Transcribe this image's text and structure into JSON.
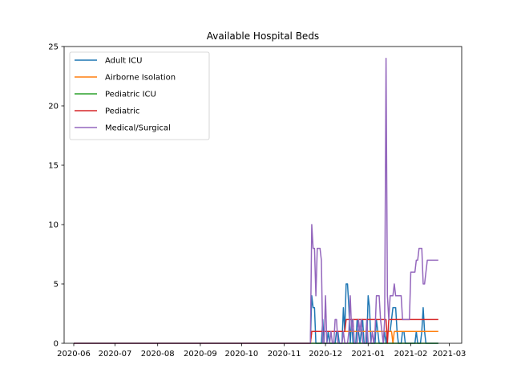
{
  "chart_data": {
    "type": "line",
    "title": "Available Hospital Beds",
    "xlabel": "",
    "ylabel": "",
    "x_axis": {
      "type": "date",
      "range": [
        "2020-05-25",
        "2021-03-10"
      ],
      "ticks": [
        "2020-06-01",
        "2020-07-01",
        "2020-08-01",
        "2020-09-01",
        "2020-10-01",
        "2020-11-01",
        "2020-12-01",
        "2021-01-01",
        "2021-02-01",
        "2021-03-01"
      ],
      "tick_labels": [
        "2020-06",
        "2020-07",
        "2020-08",
        "2020-09",
        "2020-10",
        "2020-11",
        "2020-12",
        "2021-01",
        "2021-02",
        "2021-03"
      ]
    },
    "ylim": [
      0,
      25
    ],
    "yticks": [
      0,
      5,
      10,
      15,
      20,
      25
    ],
    "grid": false,
    "legend": "top-left",
    "series": [
      {
        "name": "Adult ICU",
        "color": "#1f77b4",
        "points": [
          [
            "2020-06-01",
            0
          ],
          [
            "2020-11-20",
            0
          ],
          [
            "2020-11-21",
            4
          ],
          [
            "2020-11-22",
            3
          ],
          [
            "2020-11-23",
            3
          ],
          [
            "2020-11-24",
            0
          ],
          [
            "2020-11-28",
            0
          ],
          [
            "2020-11-29",
            2
          ],
          [
            "2020-11-30",
            0
          ],
          [
            "2020-12-02",
            0
          ],
          [
            "2020-12-03",
            1
          ],
          [
            "2020-12-04",
            0
          ],
          [
            "2020-12-08",
            0
          ],
          [
            "2020-12-09",
            1
          ],
          [
            "2020-12-10",
            1
          ],
          [
            "2020-12-11",
            0
          ],
          [
            "2020-12-13",
            0
          ],
          [
            "2020-12-14",
            3
          ],
          [
            "2020-12-15",
            1
          ],
          [
            "2020-12-16",
            5
          ],
          [
            "2020-12-17",
            5
          ],
          [
            "2020-12-18",
            3
          ],
          [
            "2020-12-19",
            0
          ],
          [
            "2020-12-20",
            2
          ],
          [
            "2020-12-21",
            0
          ],
          [
            "2020-12-23",
            0
          ],
          [
            "2020-12-24",
            2
          ],
          [
            "2020-12-25",
            1
          ],
          [
            "2020-12-26",
            0
          ],
          [
            "2020-12-28",
            2
          ],
          [
            "2020-12-29",
            0
          ],
          [
            "2020-12-31",
            0
          ],
          [
            "2021-01-01",
            4
          ],
          [
            "2021-01-02",
            3
          ],
          [
            "2021-01-03",
            0
          ],
          [
            "2021-01-06",
            0
          ],
          [
            "2021-01-07",
            2
          ],
          [
            "2021-01-08",
            1
          ],
          [
            "2021-01-09",
            0
          ],
          [
            "2021-01-12",
            0
          ],
          [
            "2021-01-13",
            1
          ],
          [
            "2021-01-14",
            0
          ],
          [
            "2021-01-15",
            1
          ],
          [
            "2021-01-17",
            1
          ],
          [
            "2021-01-18",
            2
          ],
          [
            "2021-01-19",
            3
          ],
          [
            "2021-01-20",
            3
          ],
          [
            "2021-01-21",
            3
          ],
          [
            "2021-01-22",
            1
          ],
          [
            "2021-01-23",
            0
          ],
          [
            "2021-01-25",
            0
          ],
          [
            "2021-01-26",
            1
          ],
          [
            "2021-01-27",
            1
          ],
          [
            "2021-01-28",
            0
          ],
          [
            "2021-02-04",
            0
          ],
          [
            "2021-02-05",
            1
          ],
          [
            "2021-02-06",
            0
          ],
          [
            "2021-02-08",
            0
          ],
          [
            "2021-02-09",
            1
          ],
          [
            "2021-02-10",
            3
          ],
          [
            "2021-02-11",
            1
          ],
          [
            "2021-02-12",
            0
          ],
          [
            "2021-02-21",
            0
          ]
        ]
      },
      {
        "name": "Airborne Isolation",
        "color": "#ff7f0e",
        "points": [
          [
            "2020-06-01",
            0
          ],
          [
            "2020-11-20",
            0
          ],
          [
            "2020-11-21",
            1
          ],
          [
            "2021-01-18",
            1
          ],
          [
            "2021-01-19",
            0
          ],
          [
            "2021-01-20",
            1
          ],
          [
            "2021-02-21",
            1
          ]
        ]
      },
      {
        "name": "Pediatric ICU",
        "color": "#2ca02c",
        "points": [
          [
            "2020-06-01",
            0
          ],
          [
            "2021-02-21",
            0
          ]
        ]
      },
      {
        "name": "Pediatric",
        "color": "#d62728",
        "points": [
          [
            "2020-06-01",
            0
          ],
          [
            "2020-11-20",
            0
          ],
          [
            "2020-11-21",
            1
          ],
          [
            "2020-12-15",
            1
          ],
          [
            "2020-12-16",
            2
          ],
          [
            "2021-01-14",
            2
          ],
          [
            "2021-01-15",
            0
          ],
          [
            "2021-01-16",
            2
          ],
          [
            "2021-02-21",
            2
          ]
        ]
      },
      {
        "name": "Medical/Surgical",
        "color": "#9467bd",
        "points": [
          [
            "2020-06-01",
            0
          ],
          [
            "2020-11-20",
            0
          ],
          [
            "2020-11-21",
            10
          ],
          [
            "2020-11-22",
            8
          ],
          [
            "2020-11-23",
            8
          ],
          [
            "2020-11-24",
            4
          ],
          [
            "2020-11-25",
            8
          ],
          [
            "2020-11-26",
            8
          ],
          [
            "2020-11-27",
            8
          ],
          [
            "2020-11-28",
            7
          ],
          [
            "2020-11-29",
            0
          ],
          [
            "2020-11-30",
            0
          ],
          [
            "2020-12-01",
            4
          ],
          [
            "2020-12-02",
            0
          ],
          [
            "2020-12-04",
            0
          ],
          [
            "2020-12-05",
            1
          ],
          [
            "2020-12-06",
            0
          ],
          [
            "2020-12-07",
            0
          ],
          [
            "2020-12-08",
            2
          ],
          [
            "2020-12-09",
            2
          ],
          [
            "2020-12-10",
            0
          ],
          [
            "2020-12-13",
            0
          ],
          [
            "2020-12-14",
            1
          ],
          [
            "2020-12-15",
            0
          ],
          [
            "2020-12-17",
            0
          ],
          [
            "2020-12-18",
            1
          ],
          [
            "2020-12-19",
            4
          ],
          [
            "2020-12-20",
            1
          ],
          [
            "2020-12-21",
            2
          ],
          [
            "2020-12-22",
            0
          ],
          [
            "2020-12-24",
            0
          ],
          [
            "2020-12-25",
            2
          ],
          [
            "2020-12-26",
            1
          ],
          [
            "2020-12-27",
            2
          ],
          [
            "2020-12-28",
            0
          ],
          [
            "2020-12-30",
            0
          ],
          [
            "2020-12-31",
            2
          ],
          [
            "2021-01-01",
            0
          ],
          [
            "2021-01-03",
            0
          ],
          [
            "2021-01-04",
            1
          ],
          [
            "2021-01-05",
            0
          ],
          [
            "2021-01-06",
            1
          ],
          [
            "2021-01-07",
            4
          ],
          [
            "2021-01-08",
            4
          ],
          [
            "2021-01-09",
            4
          ],
          [
            "2021-01-10",
            2
          ],
          [
            "2021-01-11",
            1
          ],
          [
            "2021-01-12",
            0
          ],
          [
            "2021-01-13",
            2
          ],
          [
            "2021-01-14",
            24
          ],
          [
            "2021-01-15",
            4
          ],
          [
            "2021-01-16",
            2
          ],
          [
            "2021-01-17",
            4
          ],
          [
            "2021-01-18",
            4
          ],
          [
            "2021-01-19",
            4
          ],
          [
            "2021-01-20",
            5
          ],
          [
            "2021-01-21",
            4
          ],
          [
            "2021-01-22",
            4
          ],
          [
            "2021-01-24",
            4
          ],
          [
            "2021-01-25",
            4
          ],
          [
            "2021-01-26",
            2
          ],
          [
            "2021-01-28",
            2
          ],
          [
            "2021-01-29",
            2
          ],
          [
            "2021-01-31",
            2
          ],
          [
            "2021-02-01",
            6
          ],
          [
            "2021-02-02",
            6
          ],
          [
            "2021-02-04",
            6
          ],
          [
            "2021-02-05",
            7
          ],
          [
            "2021-02-06",
            7
          ],
          [
            "2021-02-07",
            8
          ],
          [
            "2021-02-08",
            8
          ],
          [
            "2021-02-09",
            8
          ],
          [
            "2021-02-10",
            5
          ],
          [
            "2021-02-11",
            5
          ],
          [
            "2021-02-12",
            6
          ],
          [
            "2021-02-13",
            7
          ],
          [
            "2021-02-21",
            7
          ]
        ]
      }
    ]
  }
}
